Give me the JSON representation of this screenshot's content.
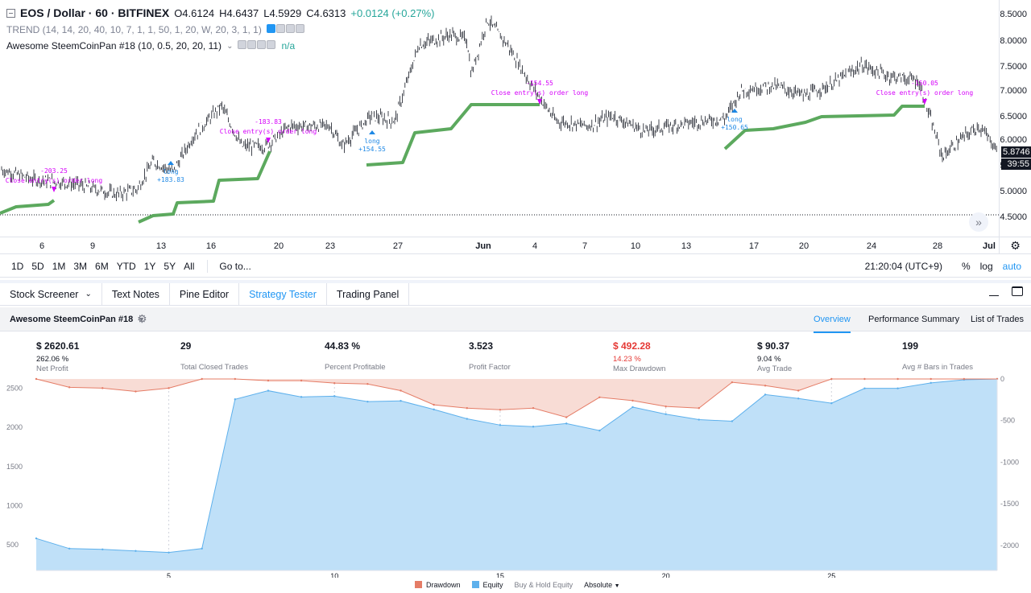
{
  "colors": {
    "accent": "#2196f3",
    "equity_fill": "#bfe0f8",
    "equity_line": "#5db0ec",
    "drawdown_fill": "#f8dcd5",
    "drawdown_line": "#e57c66",
    "strategy_line": "#5ca95e",
    "signal_magenta": "#d500f9",
    "signal_blue": "#1e88e5",
    "positive": "#26a69a",
    "negative": "#e53935"
  },
  "legend": {
    "symbol": "EOS / Dollar",
    "interval": "60",
    "exchange": "BITFINEX",
    "open": "O4.6124",
    "high": "H4.6437",
    "low": "L4.5929",
    "close": "C4.6313",
    "change": "+0.0124 (+0.27%)",
    "indicator_trend": "TREND (14, 14, 20, 40, 10, 7, 1, 1, 50, 1, 20, W, 20, 3, 1, 1)",
    "indicator_strategy": "Awesome SteemCoinPan #18 (10, 0.5, 20, 20, 11)",
    "strategy_value": "n/a"
  },
  "price_scale": {
    "ticks": [
      "8.5000",
      "8.0000",
      "7.5000",
      "7.0000",
      "6.5000",
      "6.0000",
      "5.5000",
      "5.0000",
      "4.5000"
    ],
    "last_price": "5.8746",
    "countdown": "39:55"
  },
  "time_axis": {
    "ticks": [
      {
        "label": "6",
        "bold": false
      },
      {
        "label": "9",
        "bold": false
      },
      {
        "label": "13",
        "bold": false
      },
      {
        "label": "16",
        "bold": false
      },
      {
        "label": "20",
        "bold": false
      },
      {
        "label": "23",
        "bold": false
      },
      {
        "label": "27",
        "bold": false
      },
      {
        "label": "Jun",
        "bold": true
      },
      {
        "label": "4",
        "bold": false
      },
      {
        "label": "7",
        "bold": false
      },
      {
        "label": "10",
        "bold": false
      },
      {
        "label": "13",
        "bold": false
      },
      {
        "label": "17",
        "bold": false
      },
      {
        "label": "20",
        "bold": false
      },
      {
        "label": "24",
        "bold": false
      },
      {
        "label": "28",
        "bold": false
      },
      {
        "label": "Jul",
        "bold": true
      }
    ]
  },
  "signals": {
    "close_label": "Close entry(s) order long",
    "long_label": "long",
    "values": [
      "-203.25",
      "+183.83",
      "-183.83",
      "+154.55",
      "-154.55",
      "+150.65",
      "-150.05"
    ]
  },
  "range_bar": {
    "ranges": [
      "1D",
      "5D",
      "1M",
      "3M",
      "6M",
      "YTD",
      "1Y",
      "5Y",
      "All"
    ],
    "goto": "Go to...",
    "clock": "21:20:04 (UTC+9)",
    "percent": "%",
    "log": "log",
    "auto": "auto"
  },
  "bottom_tabs": [
    "Stock Screener",
    "Text Notes",
    "Pine Editor",
    "Strategy Tester",
    "Trading Panel"
  ],
  "strategy": {
    "name": "Awesome SteemCoinPan #18",
    "tabs": [
      "Overview",
      "Performance Summary",
      "List of Trades"
    ]
  },
  "stats": [
    {
      "value": "$ 2620.61",
      "sub": "262.06 %",
      "label": "Net Profit"
    },
    {
      "value": "29",
      "sub": "",
      "label": "Total Closed Trades"
    },
    {
      "value": "44.83 %",
      "sub": "",
      "label": "Percent Profitable"
    },
    {
      "value": "3.523",
      "sub": "",
      "label": "Profit Factor"
    },
    {
      "value": "$ 492.28",
      "sub": "14.23 %",
      "label": "Max Drawdown"
    },
    {
      "value": "$ 90.37",
      "sub": "9.04 %",
      "label": "Avg Trade"
    },
    {
      "value": "199",
      "sub": "",
      "label": "Avg # Bars in Trades"
    }
  ],
  "chart_data": {
    "type": "area",
    "x": [
      1,
      2,
      3,
      4,
      5,
      6,
      7,
      8,
      9,
      10,
      11,
      12,
      13,
      14,
      15,
      16,
      17,
      18,
      19,
      20,
      21,
      22,
      23,
      24,
      25,
      26,
      27,
      28,
      29,
      30
    ],
    "x_ticks": [
      "5",
      "10",
      "15",
      "20",
      "25"
    ],
    "left_ticks": [
      "2500",
      "2000",
      "1500",
      "1000",
      "500"
    ],
    "right_ticks": [
      "0",
      "-500",
      "-1000",
      "-1500",
      "-2000"
    ],
    "ylim_left": [
      170,
      2620
    ],
    "ylim_right": [
      -2300,
      0
    ],
    "series": [
      {
        "name": "Equity",
        "values": [
          580,
          450,
          440,
          420,
          400,
          450,
          2360,
          2470,
          2390,
          2400,
          2330,
          2340,
          2230,
          2110,
          2030,
          2010,
          2050,
          1960,
          2260,
          2170,
          2100,
          2080,
          2420,
          2370,
          2310,
          2500,
          2500,
          2570,
          2610,
          2620
        ]
      },
      {
        "name": "Drawdown",
        "values": [
          0,
          -100,
          -110,
          -150,
          -110,
          0,
          0,
          -20,
          -20,
          -50,
          -60,
          -140,
          -310,
          -350,
          -370,
          -350,
          -460,
          -220,
          -260,
          -330,
          -350,
          -40,
          -80,
          -140,
          0,
          0,
          0,
          0,
          0,
          0
        ]
      }
    ],
    "legend": [
      "Drawdown",
      "Equity",
      "Buy & Hold Equity"
    ],
    "scale_mode": "Absolute"
  }
}
